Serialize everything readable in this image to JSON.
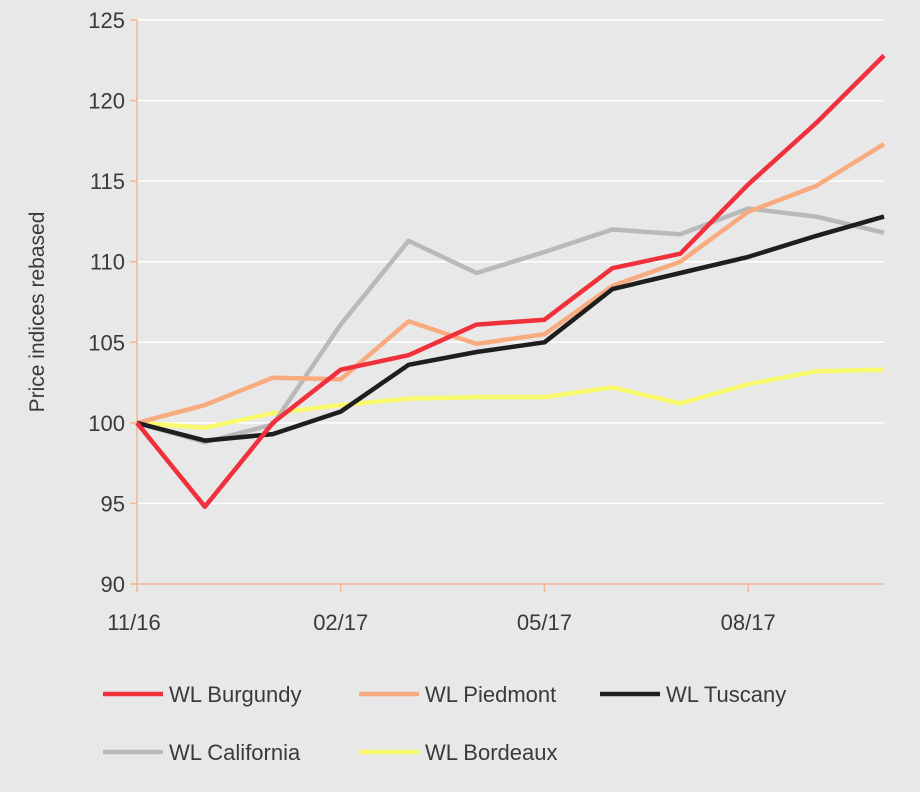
{
  "chart_data": {
    "type": "line",
    "title": "",
    "xlabel": "",
    "ylabel": "Price indices rebased",
    "x": [
      "11/16",
      "12/16",
      "01/17",
      "02/17",
      "03/17",
      "04/17",
      "05/17",
      "06/17",
      "07/17",
      "08/17",
      "09/17",
      "10/17"
    ],
    "x_tick_labels": [
      "11/16",
      "02/17",
      "05/17",
      "08/17"
    ],
    "y_ticks": [
      90,
      95,
      100,
      105,
      110,
      115,
      120,
      125
    ],
    "ylim": [
      90,
      125
    ],
    "grid": "horizontal",
    "legend_position": "bottom",
    "colors": {
      "background": "#e8e8e9",
      "axis": "#f5b58f",
      "grid": "#ffffff"
    },
    "series": [
      {
        "name": "WL Burgundy",
        "color": "#f0303a",
        "values": [
          100,
          94.8,
          100.0,
          103.3,
          104.2,
          106.1,
          106.4,
          109.6,
          110.5,
          114.8,
          118.6,
          122.8
        ]
      },
      {
        "name": "WL Piedmont",
        "color": "#f9ab80",
        "values": [
          100,
          101.1,
          102.8,
          102.7,
          106.3,
          104.9,
          105.5,
          108.5,
          110.0,
          113.1,
          114.7,
          117.3
        ]
      },
      {
        "name": "WL Tuscany",
        "color": "#1e1e1e",
        "values": [
          100,
          98.9,
          99.3,
          100.7,
          103.6,
          104.4,
          105.0,
          108.3,
          109.3,
          110.3,
          111.6,
          112.8
        ]
      },
      {
        "name": "WL California",
        "color": "#b9b9b9",
        "values": [
          100,
          98.8,
          99.9,
          106.1,
          111.3,
          109.3,
          110.6,
          112.0,
          111.7,
          113.3,
          112.8,
          111.8
        ]
      },
      {
        "name": "WL Bordeaux",
        "color": "#fafa6e",
        "values": [
          100,
          99.7,
          100.6,
          101.1,
          101.5,
          101.6,
          101.6,
          102.2,
          101.2,
          102.4,
          103.2,
          103.3
        ]
      }
    ]
  }
}
